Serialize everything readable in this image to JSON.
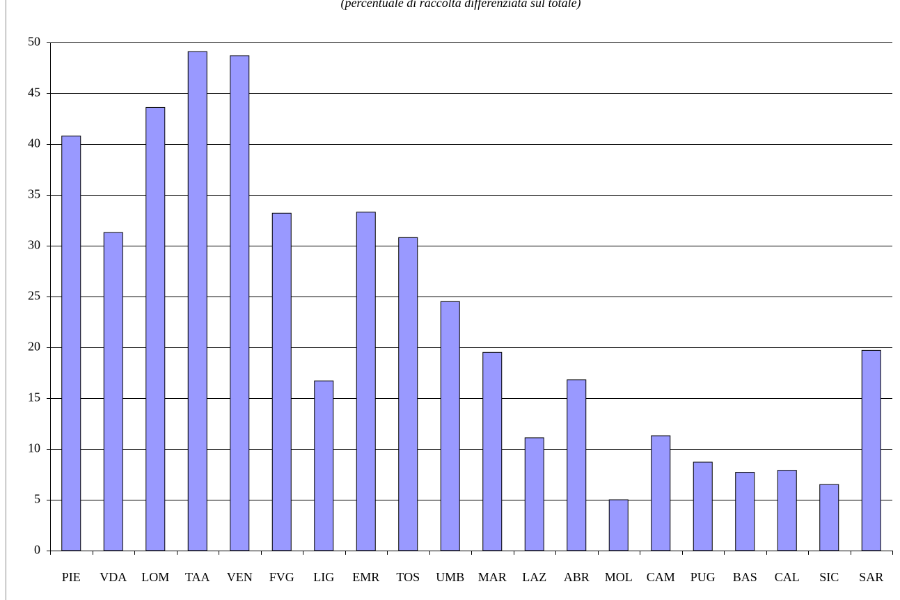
{
  "chart_data": {
    "type": "bar",
    "subtitle": "(percentuale di raccolta differenziata sul totale)",
    "categories": [
      "PIE",
      "VDA",
      "LOM",
      "TAA",
      "VEN",
      "FVG",
      "LIG",
      "EMR",
      "TOS",
      "UMB",
      "MAR",
      "LAZ",
      "ABR",
      "MOL",
      "CAM",
      "PUG",
      "BAS",
      "CAL",
      "SIC",
      "SAR"
    ],
    "values": [
      40.8,
      31.3,
      43.6,
      49.1,
      48.7,
      33.2,
      16.7,
      33.3,
      30.8,
      24.5,
      19.5,
      11.1,
      16.8,
      5.0,
      11.3,
      8.7,
      7.7,
      7.9,
      6.5,
      19.7
    ],
    "color": "#9999ff",
    "ylim": [
      0,
      50
    ],
    "yticks": [
      0,
      5,
      10,
      15,
      20,
      25,
      30,
      35,
      40,
      45,
      50
    ],
    "grid": true
  }
}
